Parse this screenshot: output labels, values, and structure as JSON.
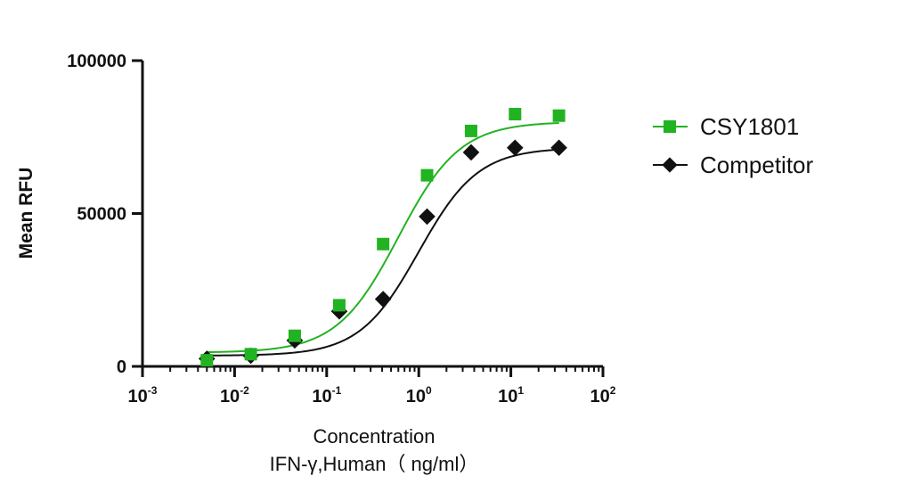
{
  "chart_data": {
    "type": "scatter",
    "xlabel": "Concentration",
    "xlabel2": "IFN-γ,Human（ ng/ml）",
    "ylabel": "Mean RFU",
    "xscale": "log",
    "xlim": [
      0.001,
      100
    ],
    "ylim": [
      0,
      100000
    ],
    "y_ticks": [
      {
        "value": 0,
        "label": "0"
      },
      {
        "value": 50000,
        "label": "50000"
      },
      {
        "value": 100000,
        "label": "100000"
      }
    ],
    "x_ticks": [
      {
        "value": 0.001,
        "base": "10",
        "exp": "-3"
      },
      {
        "value": 0.01,
        "base": "10",
        "exp": "-2"
      },
      {
        "value": 0.1,
        "base": "10",
        "exp": "-1"
      },
      {
        "value": 1,
        "base": "10",
        "exp": "0"
      },
      {
        "value": 10,
        "base": "10",
        "exp": "1"
      },
      {
        "value": 100,
        "base": "10",
        "exp": "2"
      }
    ],
    "grid": false,
    "legend_position": "right",
    "series": [
      {
        "name": "CSY1801",
        "color": "#22b322",
        "marker": "square",
        "x": [
          0.005,
          0.015,
          0.045,
          0.137,
          0.41,
          1.23,
          3.7,
          11.1,
          33.3
        ],
        "y": [
          2000,
          4000,
          10000,
          20000,
          40000,
          62500,
          77000,
          82500,
          82000
        ],
        "curve": {
          "bottom": 4500,
          "top": 80000,
          "ec50": 0.6,
          "hill": 1.3
        }
      },
      {
        "name": "Competitor",
        "color": "#111111",
        "marker": "diamond",
        "x": [
          0.005,
          0.015,
          0.045,
          0.137,
          0.41,
          1.23,
          3.7,
          11.1,
          33.3
        ],
        "y": [
          2500,
          3500,
          8500,
          18000,
          22000,
          49000,
          70000,
          71500,
          71500
        ],
        "curve": {
          "bottom": 3500,
          "top": 71500,
          "ec50": 1.0,
          "hill": 1.35
        }
      }
    ]
  }
}
